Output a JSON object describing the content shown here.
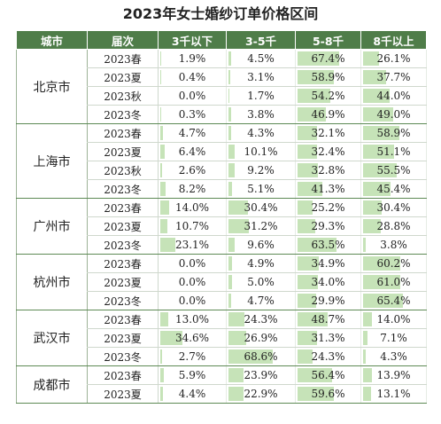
{
  "title": "2023年女士婚纱订单价格区间",
  "headers": [
    "城市",
    "届次",
    "3千以下",
    "3-5千",
    "5-8千",
    "8千以上"
  ],
  "chart_data": {
    "type": "table",
    "title": "2023年女士婚纱订单价格区间",
    "columns": [
      "3千以下",
      "3-5千",
      "5-8千",
      "8千以上"
    ],
    "groups": [
      {
        "city": "北京市",
        "rows": [
          {
            "season": "2023春",
            "values": [
              "1.9%",
              "4.5%",
              "67.4%",
              "26.1%"
            ]
          },
          {
            "season": "2023夏",
            "values": [
              "0.4%",
              "3.1%",
              "58.9%",
              "37.7%"
            ]
          },
          {
            "season": "2023秋",
            "values": [
              "0.0%",
              "1.7%",
              "54.2%",
              "44.0%"
            ]
          },
          {
            "season": "2023冬",
            "values": [
              "0.3%",
              "3.8%",
              "46.9%",
              "49.0%"
            ]
          }
        ]
      },
      {
        "city": "上海市",
        "rows": [
          {
            "season": "2023春",
            "values": [
              "4.7%",
              "4.3%",
              "32.1%",
              "58.9%"
            ]
          },
          {
            "season": "2023夏",
            "values": [
              "6.4%",
              "10.1%",
              "32.4%",
              "51.1%"
            ]
          },
          {
            "season": "2023秋",
            "values": [
              "2.6%",
              "9.2%",
              "32.8%",
              "55.5%"
            ]
          },
          {
            "season": "2023冬",
            "values": [
              "8.2%",
              "5.1%",
              "41.3%",
              "45.4%"
            ]
          }
        ]
      },
      {
        "city": "广州市",
        "rows": [
          {
            "season": "2023春",
            "values": [
              "14.0%",
              "30.4%",
              "25.2%",
              "30.4%"
            ]
          },
          {
            "season": "2023夏",
            "values": [
              "10.7%",
              "31.2%",
              "29.3%",
              "28.8%"
            ]
          },
          {
            "season": "2023冬",
            "values": [
              "23.1%",
              "9.6%",
              "63.5%",
              "3.8%"
            ]
          }
        ]
      },
      {
        "city": "杭州市",
        "rows": [
          {
            "season": "2023春",
            "values": [
              "0.0%",
              "4.9%",
              "34.9%",
              "60.2%"
            ]
          },
          {
            "season": "2023夏",
            "values": [
              "0.0%",
              "5.0%",
              "34.0%",
              "61.0%"
            ]
          },
          {
            "season": "2023冬",
            "values": [
              "0.0%",
              "4.7%",
              "29.9%",
              "65.4%"
            ]
          }
        ]
      },
      {
        "city": "武汉市",
        "rows": [
          {
            "season": "2023春",
            "values": [
              "13.0%",
              "24.3%",
              "48.7%",
              "14.0%"
            ]
          },
          {
            "season": "2023夏",
            "values": [
              "34.6%",
              "26.9%",
              "31.3%",
              "7.1%"
            ]
          },
          {
            "season": "2023冬",
            "values": [
              "2.7%",
              "68.6%",
              "24.3%",
              "4.3%"
            ]
          }
        ]
      },
      {
        "city": "成都市",
        "rows": [
          {
            "season": "2023春",
            "values": [
              "5.9%",
              "23.9%",
              "56.4%",
              "13.9%"
            ]
          },
          {
            "season": "2023夏",
            "values": [
              "4.4%",
              "22.9%",
              "59.6%",
              "13.1%"
            ]
          }
        ]
      }
    ]
  },
  "colors": {
    "header_bg": "#4f7d49",
    "bar": "#c6e3b8",
    "group_border": "#5d8a55"
  }
}
